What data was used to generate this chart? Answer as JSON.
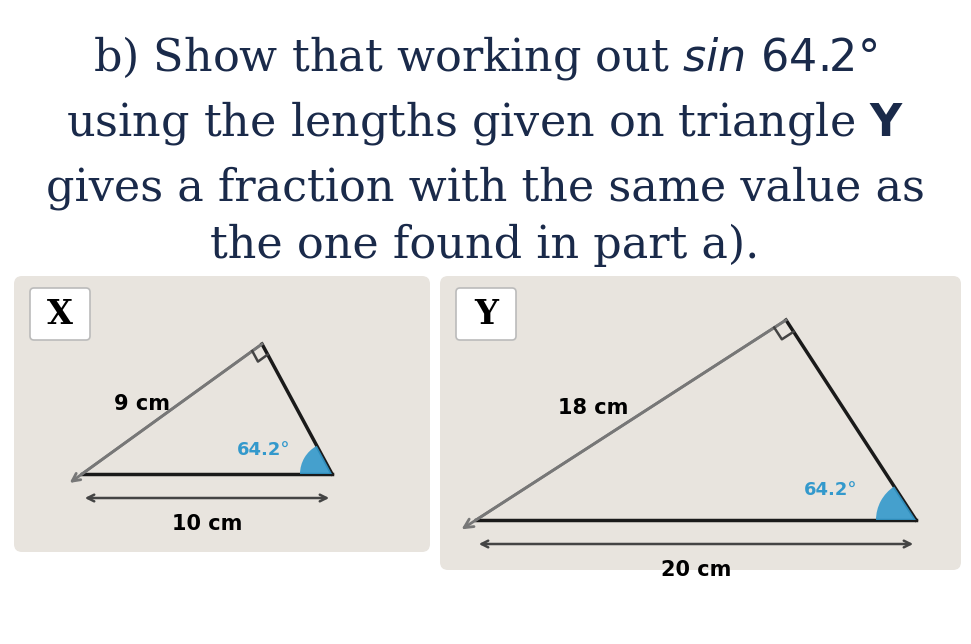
{
  "title_lines": [
    [
      "b) Show that working out ",
      "sin 64.2°",
      ""
    ],
    [
      "using the lengths given on triangle ",
      "Y",
      ""
    ],
    [
      "gives a fraction with the same value as",
      "",
      ""
    ],
    [
      "the one found in part a).",
      "",
      ""
    ]
  ],
  "background_color": "#ffffff",
  "panel_color": "#e8e4de",
  "title_color": "#1a2a4a",
  "title_fontsize": 32,
  "angle_color": "#3399cc",
  "line_color": "#1a1a1a",
  "arrow_color": "#777777",
  "text_color": "#000000",
  "tri_X_label": "X",
  "tri_X_side": "9 cm",
  "tri_X_base": "10 cm",
  "tri_X_angle": "64.2°",
  "tri_Y_label": "Y",
  "tri_Y_hyp": "18 cm",
  "tri_Y_base": "20 cm",
  "tri_Y_angle": "64.2°"
}
